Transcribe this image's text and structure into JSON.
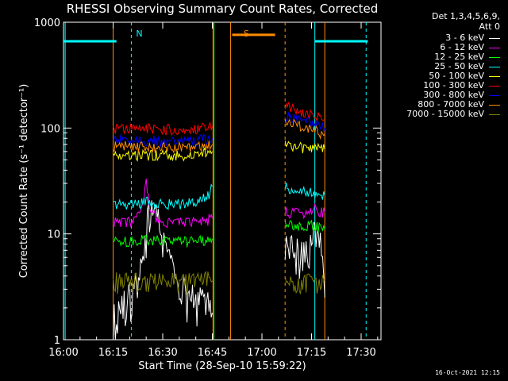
{
  "chart_data": {
    "type": "line",
    "title": "RHESSI Observing Summary Count Rates, Corrected",
    "xlabel": "Start Time (28-Sep-10 15:59:22)",
    "ylabel": "Corrected Count Rate (s⁻¹ detector⁻¹)",
    "y_scale": "log",
    "ylim": [
      1,
      1000
    ],
    "xlim_minutes": [
      0,
      96
    ],
    "x_tick_labels": [
      "16:00",
      "16:15",
      "16:30",
      "16:45",
      "17:00",
      "17:15",
      "17:30"
    ],
    "x_tick_minutes": [
      0,
      15,
      30,
      45,
      60,
      75,
      90
    ],
    "y_tick_labels": [
      "1",
      "10",
      "100",
      "1000"
    ],
    "y_tick_values": [
      1,
      10,
      100,
      1000
    ],
    "legend_header": [
      "Det 1,3,4,5,6,9,",
      "Att 0"
    ],
    "legend_position": "right",
    "series": [
      {
        "name": "3 - 6 keV",
        "color": "#ffffff",
        "segments": [
          {
            "x": [
              15,
              16,
              18,
              20,
              22,
              24,
              26,
              28,
              30,
              32,
              34,
              36,
              38,
              40,
              42,
              44,
              45
            ],
            "y": [
              1.5,
              1.7,
              2.0,
              2.5,
              3.2,
              5.0,
              15.0,
              16.0,
              9.0,
              6.0,
              3.5,
              2.8,
              2.5,
              2.3,
              2.2,
              2.0,
              1.8
            ]
          },
          {
            "x": [
              67,
              69,
              71,
              73,
              75,
              77,
              79
            ],
            "y": [
              8.0,
              7.0,
              6.5,
              6.0,
              7.0,
              14.0,
              2.5
            ]
          }
        ]
      },
      {
        "name": "6 - 12 keV",
        "color": "#ff00ff",
        "segments": [
          {
            "x": [
              15,
              18,
              20,
              22,
              24,
              25,
              26,
              28,
              30,
              34,
              38,
              42,
              45
            ],
            "y": [
              13,
              13,
              13,
              14,
              18,
              30,
              18,
              14,
              13,
              13,
              13,
              13,
              14
            ]
          },
          {
            "x": [
              67,
              70,
              73,
              76,
              79
            ],
            "y": [
              16,
              16,
              16,
              17,
              16
            ]
          }
        ]
      },
      {
        "name": "12 - 25 keV",
        "color": "#00ff00",
        "segments": [
          {
            "x": [
              15,
              20,
              25,
              30,
              35,
              40,
              45
            ],
            "y": [
              8.5,
              8.5,
              9.0,
              8.5,
              8.5,
              8.5,
              9.0
            ]
          },
          {
            "x": [
              67,
              71,
              75,
              79
            ],
            "y": [
              13,
              12,
              12,
              11
            ]
          }
        ]
      },
      {
        "name": "25 - 50 keV",
        "color": "#00ffff",
        "segments": [
          {
            "x": [
              15,
              20,
              25,
              30,
              35,
              40,
              44,
              45
            ],
            "y": [
              19,
              19,
              20,
              19,
              19,
              20,
              23,
              28
            ]
          },
          {
            "x": [
              67,
              70,
              73,
              76,
              79
            ],
            "y": [
              28,
              26,
              25,
              24,
              23
            ]
          }
        ]
      },
      {
        "name": "50 - 100 keV",
        "color": "#ffff00",
        "segments": [
          {
            "x": [
              15,
              20,
              25,
              30,
              35,
              40,
              45
            ],
            "y": [
              55,
              55,
              56,
              55,
              55,
              56,
              60
            ]
          },
          {
            "x": [
              67,
              70,
              73,
              76,
              79
            ],
            "y": [
              68,
              66,
              65,
              64,
              63
            ]
          }
        ]
      },
      {
        "name": "100 - 300 keV",
        "color": "#ff0000",
        "segments": [
          {
            "x": [
              15,
              20,
              25,
              30,
              35,
              40,
              45
            ],
            "y": [
              100,
              98,
              98,
              97,
              98,
              100,
              105
            ]
          },
          {
            "x": [
              67,
              70,
              73,
              76,
              79
            ],
            "y": [
              160,
              150,
              140,
              130,
              120
            ]
          }
        ]
      },
      {
        "name": "300 - 800 keV",
        "color": "#0000ff",
        "segments": [
          {
            "x": [
              15,
              20,
              25,
              30,
              35,
              40,
              45
            ],
            "y": [
              78,
              77,
              76,
              75,
              75,
              76,
              80
            ]
          },
          {
            "x": [
              67,
              70,
              73,
              76,
              79
            ],
            "y": [
              130,
              122,
              115,
              108,
              100
            ]
          }
        ]
      },
      {
        "name": "800 - 7000 keV",
        "color": "#ff8c00",
        "segments": [
          {
            "x": [
              15,
              20,
              25,
              30,
              35,
              40,
              45
            ],
            "y": [
              68,
              67,
              66,
              66,
              66,
              67,
              70
            ]
          },
          {
            "x": [
              67,
              70,
              73,
              76,
              79
            ],
            "y": [
              115,
              108,
              100,
              94,
              88
            ]
          }
        ]
      },
      {
        "name": "7000 - 15000 keV",
        "color": "#808000",
        "segments": [
          {
            "x": [
              15,
              20,
              25,
              30,
              35,
              40,
              45
            ],
            "y": [
              3.5,
              3.5,
              3.4,
              3.5,
              3.5,
              3.5,
              3.6
            ]
          },
          {
            "x": [
              67,
              70,
              73,
              76,
              79
            ],
            "y": [
              3.6,
              3.6,
              3.5,
              3.6,
              3.6
            ]
          }
        ]
      }
    ],
    "annotations": [
      {
        "text": "N",
        "color": "#00ffff",
        "x_minutes": 20.5
      },
      {
        "text": "S",
        "color": "#ff8c00",
        "x_minutes": 53
      }
    ]
  }
}
